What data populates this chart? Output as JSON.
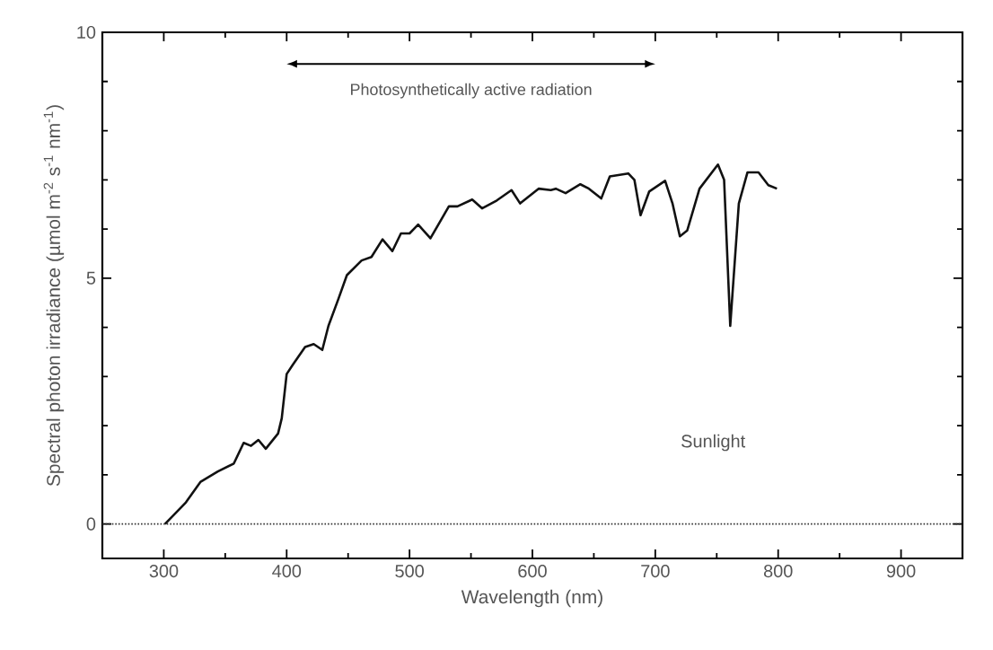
{
  "chart_data": {
    "type": "line",
    "xlabel": "Wavelength (nm)",
    "ylabel": "Spectral photon irradiance (µmol m$^{-2}$ s$^{-1}$ nm$^{-1}$)",
    "xlim": [
      250,
      950
    ],
    "ylim": [
      -0.7,
      10
    ],
    "xticks": [
      300,
      400,
      500,
      600,
      700,
      800,
      900
    ],
    "yticks": [
      0,
      5,
      10
    ],
    "grid": false,
    "marker": "none",
    "line_style": "solid",
    "ref_lines": [
      {
        "axis": "y",
        "value": 0,
        "line_style": "dotted",
        "color": "#333333"
      }
    ],
    "annotations": [
      "Photosynthetically active radiation"
    ],
    "series": [
      {
        "name": "Sunlight",
        "color": "#111111",
        "x": [
          301,
          318,
          330,
          344,
          357,
          365,
          371,
          377,
          383,
          393,
          396,
          400,
          405,
          415,
          422,
          429,
          434,
          442,
          449,
          461,
          469,
          478,
          486,
          493,
          500,
          507,
          517,
          532,
          539,
          551,
          559,
          571,
          583,
          590,
          605,
          615,
          619,
          627,
          639,
          646,
          656,
          663,
          678,
          683,
          688,
          695,
          708,
          714,
          720,
          726,
          736,
          751,
          756,
          761,
          768,
          775,
          784,
          792,
          799
        ],
        "values": [
          0,
          0.44,
          0.86,
          1.07,
          1.23,
          1.65,
          1.59,
          1.71,
          1.53,
          1.84,
          2.15,
          3.05,
          3.24,
          3.6,
          3.66,
          3.54,
          4.03,
          4.57,
          5.06,
          5.36,
          5.43,
          5.79,
          5.55,
          5.91,
          5.91,
          6.09,
          5.81,
          6.46,
          6.46,
          6.6,
          6.42,
          6.58,
          6.79,
          6.52,
          6.82,
          6.79,
          6.82,
          6.73,
          6.91,
          6.82,
          6.62,
          7.07,
          7.13,
          7.0,
          6.28,
          6.76,
          6.98,
          6.52,
          5.85,
          5.97,
          6.82,
          7.31,
          7.0,
          4.03,
          6.52,
          7.15,
          7.15,
          6.89,
          6.82
        ]
      }
    ]
  }
}
